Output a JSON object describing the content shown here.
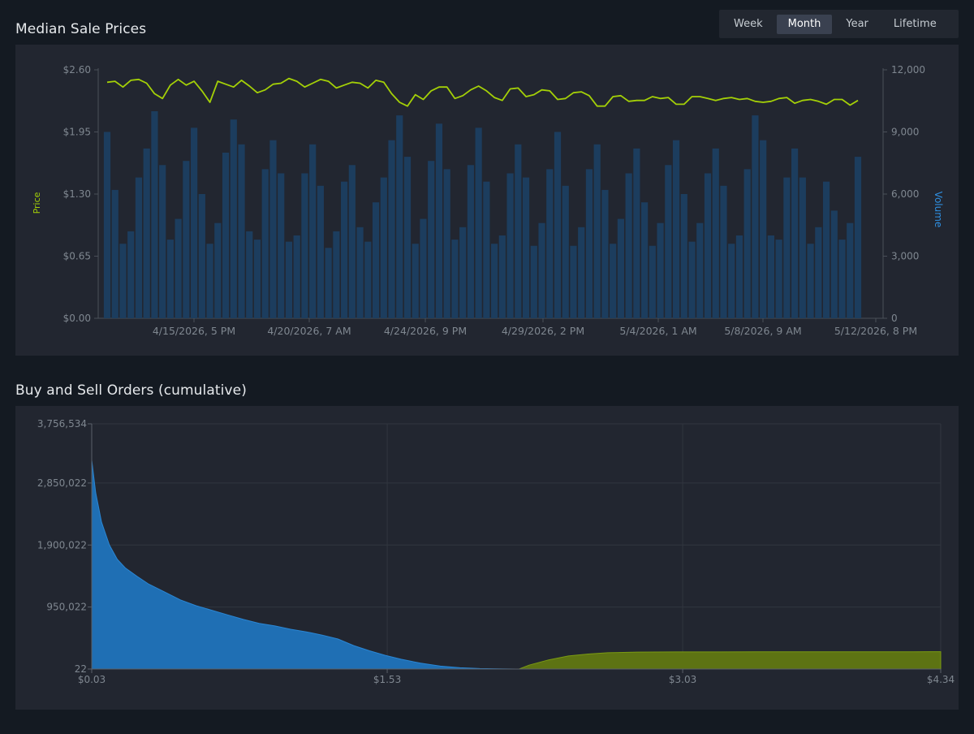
{
  "price_chart_title": "Median Sale Prices",
  "depth_chart_title": "Buy and Sell Orders (cumulative)",
  "range_tabs": [
    {
      "label": "Week",
      "active": false
    },
    {
      "label": "Month",
      "active": true
    },
    {
      "label": "Year",
      "active": false
    },
    {
      "label": "Lifetime",
      "active": false
    }
  ],
  "colors": {
    "price_line": "#a4d007",
    "volume_bars": "#1c3d5e",
    "buy_area": "#1f6fb4",
    "sell_area": "#5d7313",
    "axis_text": "#7f8790",
    "price_axis_title": "#a4d007",
    "volume_axis_title": "#2f8fe0"
  },
  "chart_data": [
    {
      "type": "line",
      "title": "Median Sale Prices",
      "ylabel": "Price",
      "y2label": "Volume",
      "ylim": [
        0,
        2.6
      ],
      "y2lim": [
        0,
        12000
      ],
      "y_ticks": [
        "$0.00",
        "$0.65",
        "$1.30",
        "$1.95",
        "$2.60"
      ],
      "y2_ticks": [
        "0",
        "3,000",
        "6,000",
        "9,000",
        "12,000"
      ],
      "x_ticks": [
        "4/15/2026, 5 PM",
        "4/20/2026, 7 AM",
        "4/24/2026, 9 PM",
        "4/29/2026, 2 PM",
        "5/4/2026, 1 AM",
        "5/8/2026, 9 AM",
        "5/12/2026, 8 PM"
      ],
      "series": [
        {
          "name": "Price",
          "values": [
            2.47,
            2.48,
            2.42,
            2.49,
            2.5,
            2.46,
            2.35,
            2.3,
            2.44,
            2.5,
            2.44,
            2.48,
            2.38,
            2.26,
            2.48,
            2.45,
            2.42,
            2.49,
            2.43,
            2.36,
            2.39,
            2.45,
            2.46,
            2.51,
            2.48,
            2.42,
            2.46,
            2.5,
            2.48,
            2.41,
            2.44,
            2.47,
            2.46,
            2.41,
            2.49,
            2.47,
            2.35,
            2.26,
            2.22,
            2.34,
            2.29,
            2.38,
            2.42,
            2.42,
            2.3,
            2.33,
            2.39,
            2.43,
            2.38,
            2.31,
            2.28,
            2.4,
            2.41,
            2.32,
            2.34,
            2.39,
            2.38,
            2.29,
            2.3,
            2.36,
            2.37,
            2.33,
            2.22,
            2.22,
            2.32,
            2.33,
            2.27,
            2.28,
            2.28,
            2.32,
            2.3,
            2.31,
            2.24,
            2.24,
            2.32,
            2.32,
            2.3,
            2.28,
            2.3,
            2.31,
            2.29,
            2.3,
            2.27,
            2.26,
            2.27,
            2.3,
            2.31,
            2.25,
            2.28,
            2.29,
            2.27,
            2.24,
            2.29,
            2.29,
            2.23,
            2.28
          ],
          "color": "#a4d007"
        },
        {
          "name": "Volume",
          "values": [
            9000,
            6200,
            3600,
            4200,
            6800,
            8200,
            10000,
            7400,
            3800,
            4800,
            7600,
            9200,
            6000,
            3600,
            4600,
            8000,
            9600,
            8400,
            4200,
            3800,
            7200,
            8600,
            7000,
            3700,
            4000,
            7000,
            8400,
            6400,
            3400,
            4200,
            6600,
            7400,
            4400,
            3700,
            5600,
            6800,
            8600,
            9800,
            7800,
            3600,
            4800,
            7600,
            9400,
            7200,
            3800,
            4400,
            7400,
            9200,
            6600,
            3600,
            4000,
            7000,
            8400,
            6800,
            3500,
            4600,
            7200,
            9000,
            6400,
            3500,
            4400,
            7200,
            8400,
            6200,
            3600,
            4800,
            7000,
            8200,
            5600,
            3500,
            4600,
            7400,
            8600,
            6000,
            3700,
            4600,
            7000,
            8200,
            6400,
            3600,
            4000,
            7200,
            9800,
            8600,
            4000,
            3800,
            6800,
            8200,
            6800,
            3600,
            4400,
            6600,
            5200,
            3800,
            4600,
            7800
          ],
          "color": "#1c3d5e"
        }
      ]
    },
    {
      "type": "area",
      "title": "Buy and Sell Orders (cumulative)",
      "xlim": [
        0.03,
        4.34
      ],
      "ylim": [
        22,
        3756534
      ],
      "x_ticks": [
        "$0.03",
        "$1.53",
        "$3.03",
        "$4.34"
      ],
      "y_ticks": [
        "22",
        "950,022",
        "1,900,022",
        "2,850,022",
        "3,756,534"
      ],
      "series": [
        {
          "name": "Buy orders",
          "x": [
            0.03,
            0.05,
            0.08,
            0.12,
            0.16,
            0.2,
            0.26,
            0.32,
            0.4,
            0.48,
            0.56,
            0.64,
            0.72,
            0.8,
            0.88,
            0.96,
            1.04,
            1.12,
            1.2,
            1.28,
            1.36,
            1.44,
            1.52,
            1.6,
            1.7,
            1.8,
            1.9,
            2.0,
            2.1,
            2.2
          ],
          "values": [
            3200000,
            2700000,
            2250000,
            1900000,
            1680000,
            1550000,
            1420000,
            1300000,
            1180000,
            1060000,
            970000,
            900000,
            830000,
            760000,
            700000,
            660000,
            610000,
            570000,
            520000,
            460000,
            360000,
            280000,
            210000,
            150000,
            90000,
            45000,
            20000,
            8000,
            2000,
            22
          ],
          "color": "#1f6fb4"
        },
        {
          "name": "Sell orders",
          "x": [
            2.2,
            2.25,
            2.35,
            2.45,
            2.55,
            2.65,
            2.8,
            3.0,
            3.2,
            3.4,
            3.6,
            3.8,
            4.0,
            4.2,
            4.34
          ],
          "values": [
            22,
            60000,
            140000,
            200000,
            230000,
            250000,
            260000,
            262000,
            263000,
            263500,
            264000,
            264500,
            265000,
            265500,
            266000
          ],
          "color": "#5d7313"
        }
      ]
    }
  ]
}
